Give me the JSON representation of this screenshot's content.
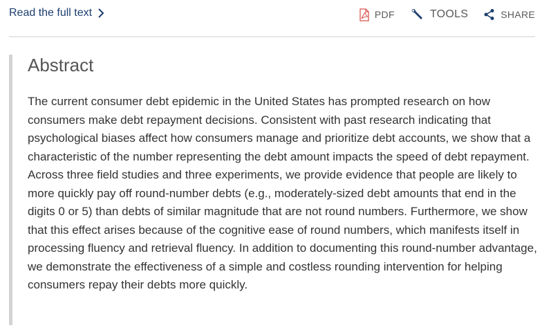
{
  "header": {
    "read_full_text": "Read the full text",
    "pdf_label": "PDF",
    "tools_label": "TOOLS",
    "share_label": "SHARE"
  },
  "icons": {
    "read_chevron": "chevron-right-icon",
    "pdf": "pdf-file-icon",
    "tools": "wrench-icon",
    "share": "share-icon"
  },
  "colors": {
    "link": "#1d3e6e",
    "pdf_icon": "#d9534f",
    "tool_icon": "#1d3e6e"
  },
  "abstract": {
    "heading": "Abstract",
    "body": "The current consumer debt epidemic in the United States has prompted research on how consumers make debt repayment decisions. Consistent with past research indicating that psychological biases affect how consumers manage and prioritize debt accounts, we show that a characteristic of the number representing the debt amount impacts the speed of debt repayment. Across three field studies and three experiments, we provide evidence that people are likely to more quickly pay off round-number debts (e.g., moderately-sized debt amounts that end in the digits 0 or 5) than debts of similar magnitude that are not round numbers. Furthermore, we show that this effect arises because of the cognitive ease of round numbers, which manifests itself in processing fluency and retrieval fluency. In addition to documenting this round-number advantage, we demonstrate the effectiveness of a simple and costless rounding intervention for helping consumers repay their debts more quickly."
  }
}
